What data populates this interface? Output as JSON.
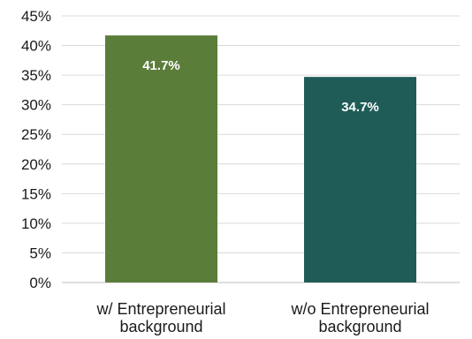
{
  "chart_data": {
    "type": "bar",
    "categories": [
      [
        "w/ Entrepreneurial",
        "background"
      ],
      [
        "w/o Entrepreneurial",
        "background"
      ]
    ],
    "values": [
      41.7,
      34.7
    ],
    "data_labels": [
      "41.7%",
      "34.7%"
    ],
    "bar_colors": [
      "#5b7d3a",
      "#1f5c58"
    ],
    "ylim": [
      0,
      45
    ],
    "yticks": [
      0,
      5,
      10,
      15,
      20,
      25,
      30,
      35,
      40,
      45
    ],
    "ytick_labels": [
      "0%",
      "5%",
      "10%",
      "15%",
      "20%",
      "25%",
      "30%",
      "35%",
      "40%",
      "45%"
    ],
    "title": "",
    "xlabel": "",
    "ylabel": "",
    "grid": true,
    "legend": "none"
  }
}
